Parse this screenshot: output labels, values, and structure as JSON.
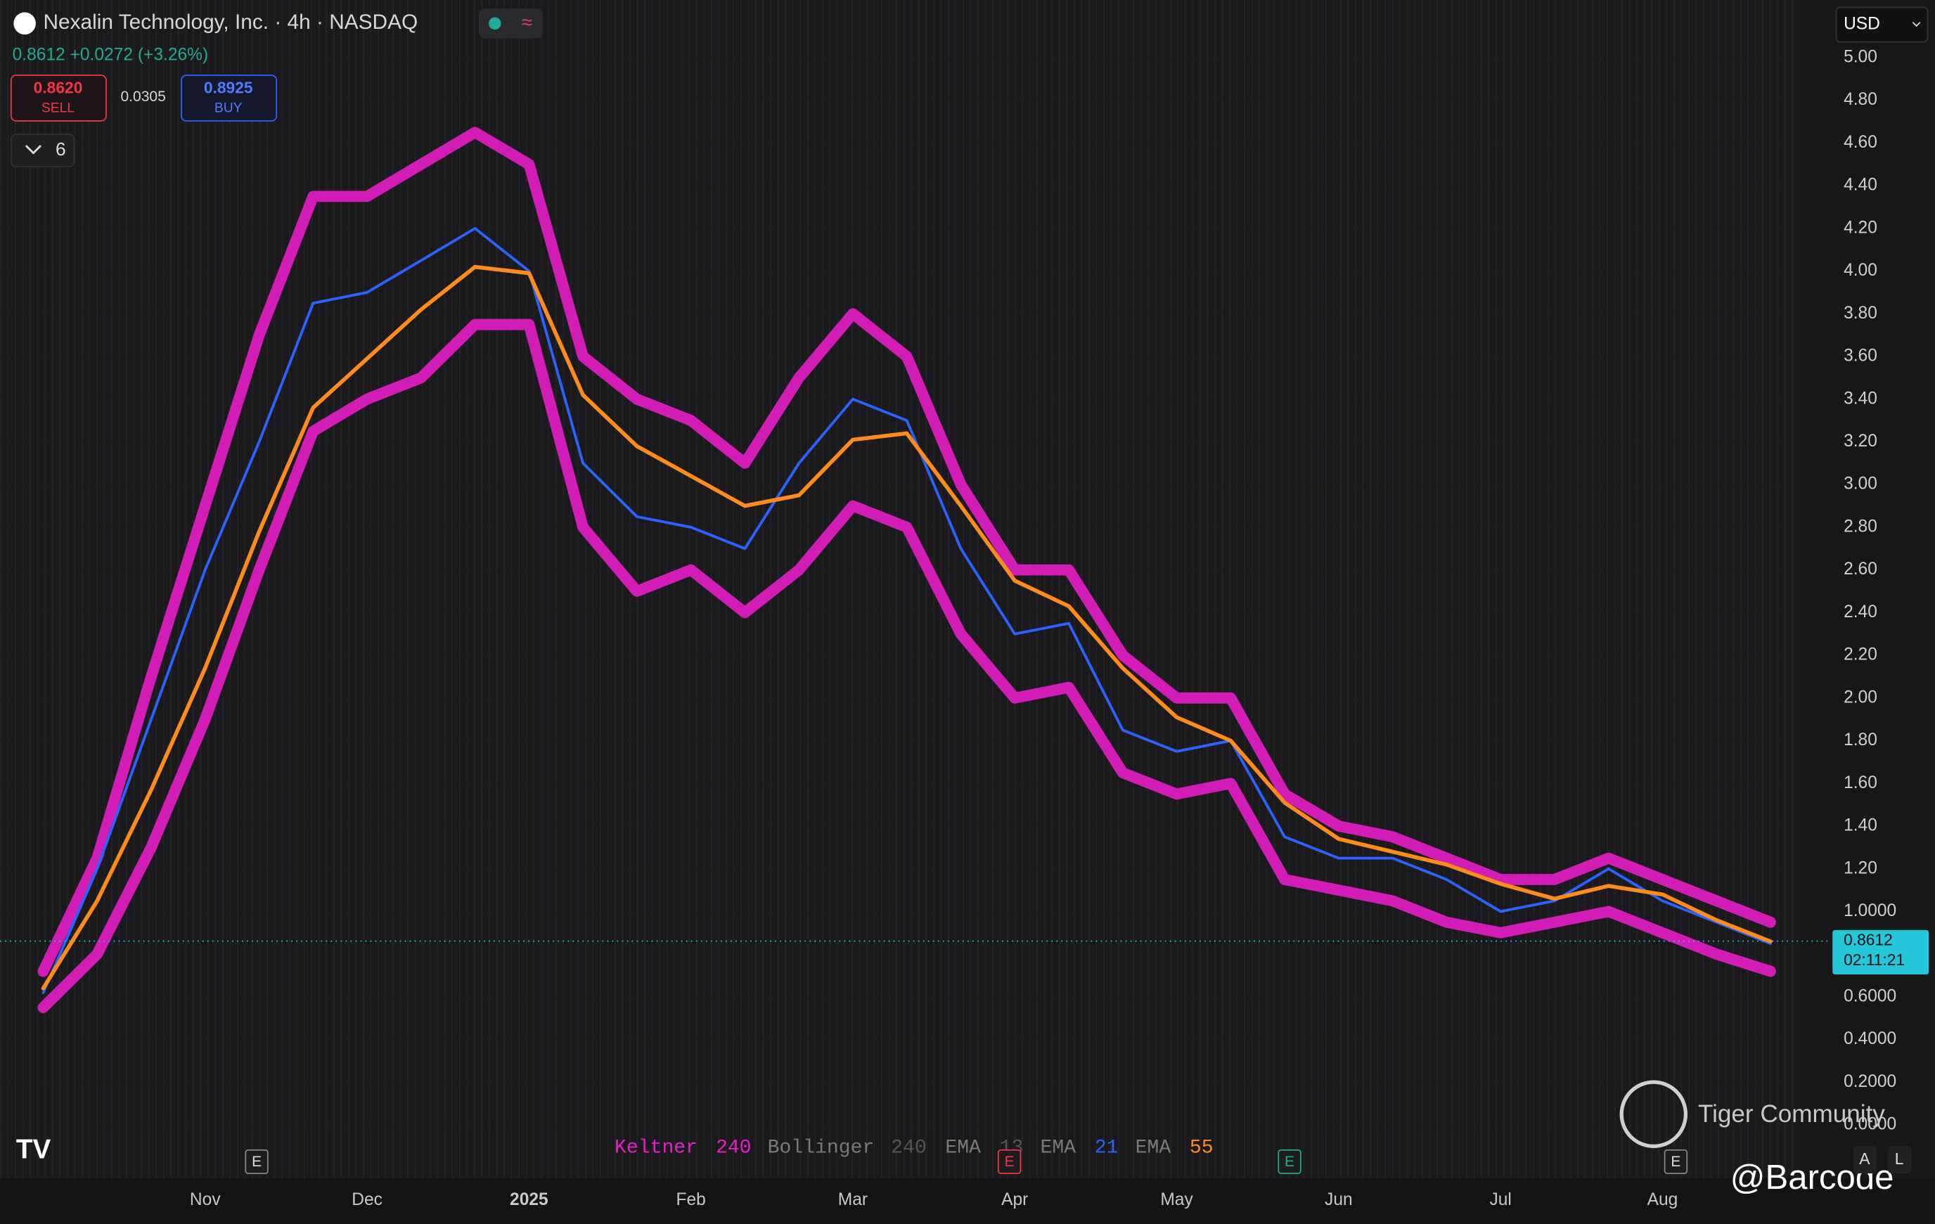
{
  "header": {
    "title": "Nexalin Technology, Inc. · 4h · NASDAQ",
    "quote": "0.8612 +0.0272 (+3.26%)",
    "sell_price": "0.8620",
    "sell": "SELL",
    "spread": "0.0305",
    "buy_price": "0.8925",
    "buy": "BUY",
    "indicators_count": "6",
    "currency": "USD"
  },
  "chart_data": {
    "type": "line",
    "categories": [
      null,
      null,
      null,
      "Nov",
      null,
      null,
      "Dec",
      null,
      null,
      "2025",
      null,
      null,
      "Feb",
      null,
      null,
      "Mar",
      null,
      null,
      "Apr",
      null,
      null,
      "May",
      null,
      null,
      "Jun",
      null,
      null,
      "Jul",
      null,
      null,
      "Aug",
      null,
      null
    ],
    "series": [
      {
        "color": "#e61ec8",
        "values": [
          0.72,
          1.25,
          2.1,
          2.9,
          3.7,
          4.35,
          4.35,
          4.5,
          4.65,
          4.5,
          3.6,
          3.4,
          3.3,
          3.1,
          3.5,
          3.8,
          3.6,
          3.0,
          2.6,
          2.6,
          2.2,
          2.0,
          2.0,
          1.55,
          1.4,
          1.35,
          1.25,
          1.15,
          1.15,
          1.25,
          1.15,
          1.05,
          0.95
        ]
      },
      {
        "color": "#e61ec8",
        "values": [
          0.55,
          0.8,
          1.3,
          1.9,
          2.6,
          3.25,
          3.4,
          3.5,
          3.75,
          3.75,
          2.8,
          2.5,
          2.6,
          2.4,
          2.6,
          2.9,
          2.8,
          2.3,
          2.0,
          2.05,
          1.65,
          1.55,
          1.6,
          1.15,
          1.1,
          1.05,
          0.95,
          0.9,
          0.95,
          1.0,
          0.9,
          0.8,
          0.72
        ]
      },
      {
        "color": "#2962ff",
        "values": [
          0.62,
          1.2,
          1.9,
          2.6,
          3.2,
          3.85,
          3.9,
          4.05,
          4.2,
          4.0,
          3.1,
          2.85,
          2.8,
          2.7,
          3.1,
          3.4,
          3.3,
          2.7,
          2.3,
          2.35,
          1.85,
          1.75,
          1.8,
          1.35,
          1.25,
          1.25,
          1.15,
          1.0,
          1.05,
          1.2,
          1.05,
          0.95,
          0.85
        ]
      },
      {
        "color": "#ff8c1a",
        "values": [
          0.64,
          1.05,
          1.57,
          2.14,
          2.78,
          3.36,
          3.59,
          3.82,
          4.02,
          3.99,
          3.42,
          3.18,
          3.04,
          2.9,
          2.95,
          3.21,
          3.24,
          2.9,
          2.55,
          2.43,
          2.14,
          1.91,
          1.8,
          1.51,
          1.34,
          1.28,
          1.22,
          1.13,
          1.06,
          1.12,
          1.08,
          0.96,
          0.86
        ]
      }
    ],
    "legend": [
      {
        "name": "Keltner",
        "param": 240,
        "color": "#e61ec8"
      },
      {
        "name": "Bollinger",
        "param": 240,
        "color": "#555555"
      },
      {
        "name": "EMA",
        "param": 13,
        "color": "#555555"
      },
      {
        "name": "EMA",
        "param": 21,
        "color": "#2962ff"
      },
      {
        "name": "EMA",
        "param": 55,
        "color": "#ff8c1a"
      }
    ],
    "ylim": [
      -0.25,
      5.27
    ],
    "yticks": [
      {
        "value": 0,
        "label": "0.0000"
      },
      {
        "value": 0.2,
        "label": "0.2000"
      },
      {
        "value": 0.4,
        "label": "0.4000"
      },
      {
        "value": 0.6,
        "label": "0.6000"
      },
      {
        "value": 1,
        "label": "1.0000"
      },
      {
        "value": 1.2,
        "label": "1.20"
      },
      {
        "value": 1.4,
        "label": "1.40"
      },
      {
        "value": 1.6,
        "label": "1.60"
      },
      {
        "value": 1.8,
        "label": "1.80"
      },
      {
        "value": 2,
        "label": "2.00"
      },
      {
        "value": 2.2,
        "label": "2.20"
      },
      {
        "value": 2.4,
        "label": "2.40"
      },
      {
        "value": 2.6,
        "label": "2.60"
      },
      {
        "value": 2.8,
        "label": "2.80"
      },
      {
        "value": 3,
        "label": "3.00"
      },
      {
        "value": 3.2,
        "label": "3.20"
      },
      {
        "value": 3.4,
        "label": "3.40"
      },
      {
        "value": 3.6,
        "label": "3.60"
      },
      {
        "value": 3.8,
        "label": "3.80"
      },
      {
        "value": 4,
        "label": "4.00"
      },
      {
        "value": 4.2,
        "label": "4.20"
      },
      {
        "value": 4.4,
        "label": "4.40"
      },
      {
        "value": 4.6,
        "label": "4.60"
      },
      {
        "value": 4.8,
        "label": "4.80"
      },
      {
        "value": 5,
        "label": "5.00"
      }
    ],
    "last_price": 0.8612,
    "countdown": "02:11:21",
    "earnings": [
      "E",
      "E",
      "E",
      "E"
    ]
  },
  "footer": {
    "watermark": "Tiger Community",
    "handle": "@Barcode",
    "auto": "A",
    "log": "L"
  }
}
